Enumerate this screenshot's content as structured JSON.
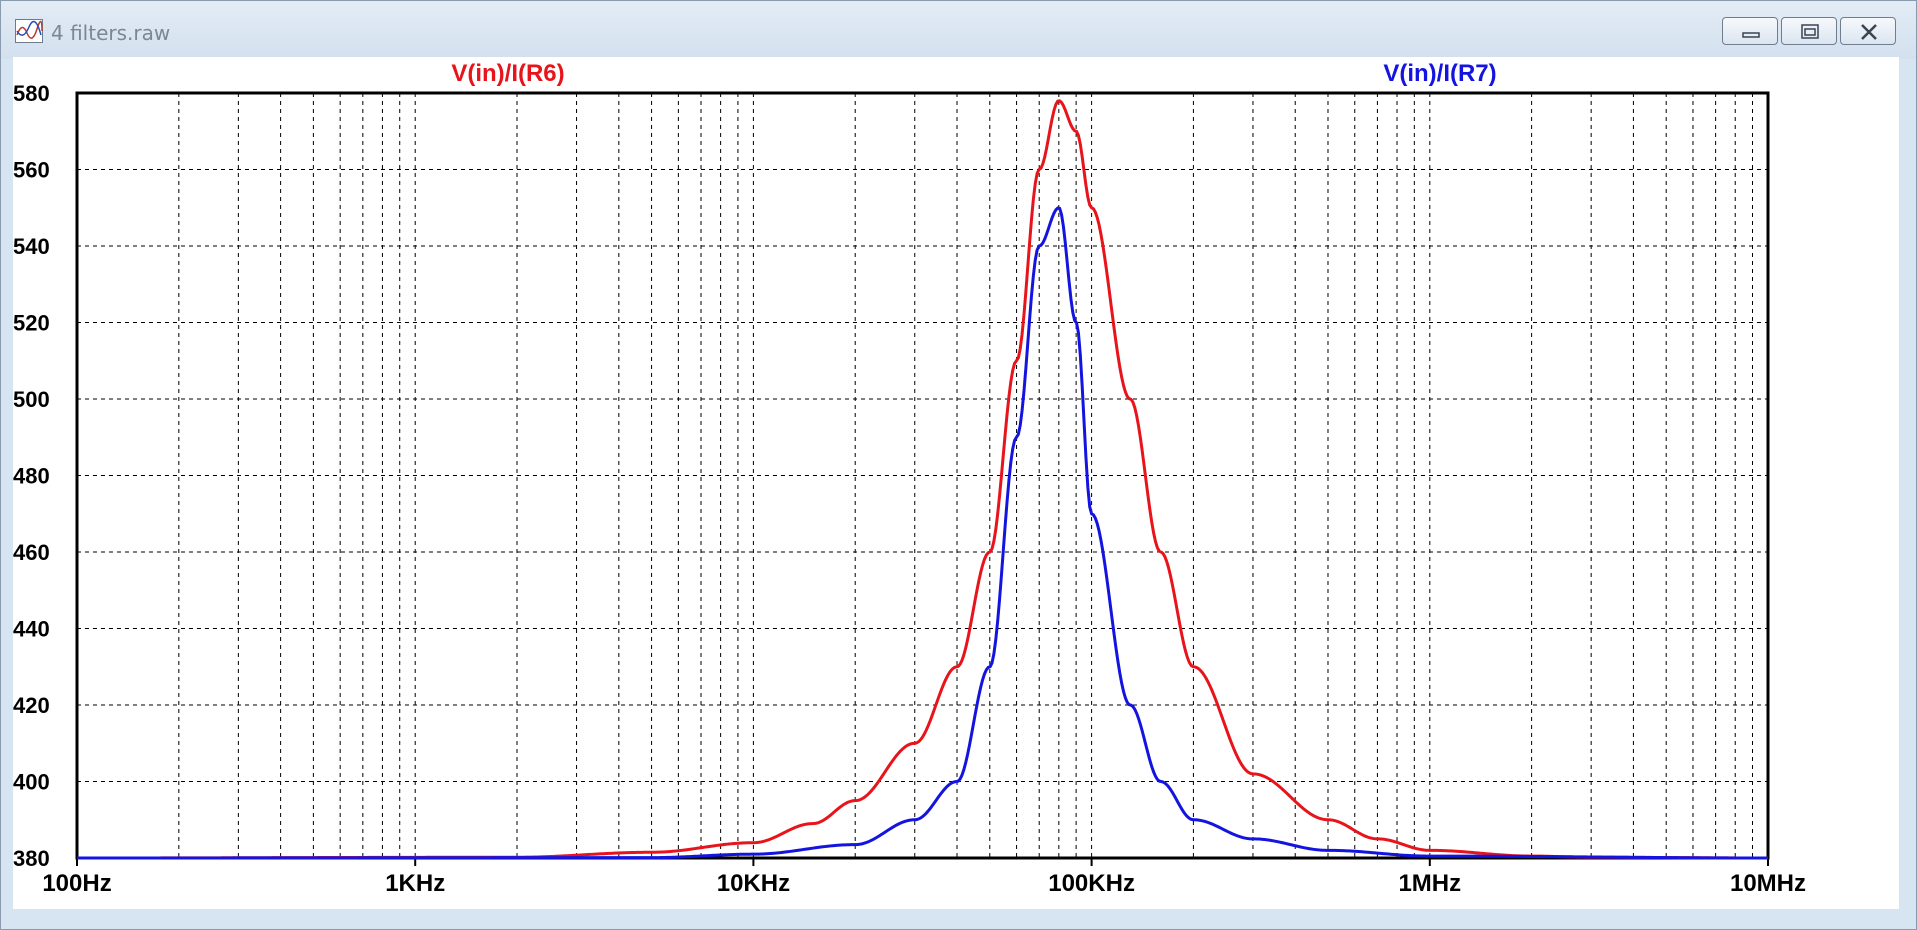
{
  "window": {
    "title": "4 filters.raw",
    "icon": "waveform-icon"
  },
  "colors": {
    "trace1": "#e8141b",
    "trace2": "#1414e0",
    "grid": "#000000",
    "background": "#ffffff"
  },
  "chart_data": {
    "type": "line",
    "title": "",
    "x_scale": "log",
    "xlim": [
      100,
      10000000
    ],
    "ylim": [
      380,
      580
    ],
    "x_tick_labels": [
      "100Hz",
      "1KHz",
      "10KHz",
      "100KHz",
      "1MHz",
      "10MHz"
    ],
    "y_ticks": [
      380,
      400,
      420,
      440,
      460,
      480,
      500,
      520,
      540,
      560,
      580
    ],
    "y_tick_labels": [
      "380",
      "400",
      "420",
      "440",
      "460",
      "480",
      "500",
      "520",
      "540",
      "560",
      "580"
    ],
    "grid": true,
    "series": [
      {
        "name": "V(in)/I(R6)",
        "color": "#e8141b",
        "points": [
          [
            100,
            380
          ],
          [
            2000,
            380.2
          ],
          [
            5000,
            381.5
          ],
          [
            10000,
            384
          ],
          [
            15000,
            389
          ],
          [
            20000,
            395
          ],
          [
            30000,
            410
          ],
          [
            40000,
            430
          ],
          [
            50000,
            460
          ],
          [
            60000,
            510
          ],
          [
            70000,
            560
          ],
          [
            80000,
            578
          ],
          [
            90000,
            570
          ],
          [
            100000,
            550
          ],
          [
            130000,
            500
          ],
          [
            160000,
            460
          ],
          [
            200000,
            430
          ],
          [
            300000,
            402
          ],
          [
            500000,
            390
          ],
          [
            700000,
            385
          ],
          [
            1000000,
            382
          ],
          [
            2000000,
            380.5
          ],
          [
            3000000,
            380.2
          ],
          [
            10000000,
            380
          ]
        ]
      },
      {
        "name": "V(in)/I(R7)",
        "color": "#1414e0",
        "points": [
          [
            100,
            380
          ],
          [
            5000,
            380.1
          ],
          [
            10000,
            381
          ],
          [
            20000,
            383.5
          ],
          [
            30000,
            390
          ],
          [
            40000,
            400
          ],
          [
            50000,
            430
          ],
          [
            60000,
            490
          ],
          [
            70000,
            540
          ],
          [
            80000,
            550
          ],
          [
            90000,
            520
          ],
          [
            100000,
            470
          ],
          [
            130000,
            420
          ],
          [
            160000,
            400
          ],
          [
            200000,
            390
          ],
          [
            300000,
            385
          ],
          [
            500000,
            382
          ],
          [
            1000000,
            380.5
          ],
          [
            10000000,
            380
          ]
        ]
      }
    ]
  }
}
